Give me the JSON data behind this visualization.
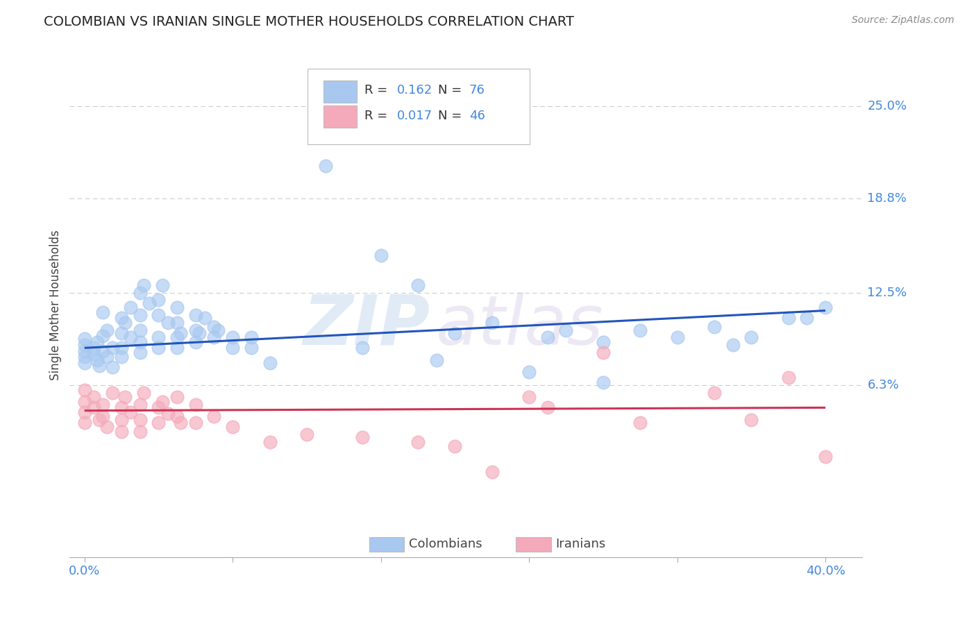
{
  "title": "COLOMBIAN VS IRANIAN SINGLE MOTHER HOUSEHOLDS CORRELATION CHART",
  "source_text": "Source: ZipAtlas.com",
  "ylabel": "Single Mother Households",
  "blue_color": "#A8C8F0",
  "blue_edge_color": "#A8C8F0",
  "blue_line_color": "#2255BB",
  "pink_color": "#F4AABB",
  "pink_edge_color": "#F4AABB",
  "pink_line_color": "#CC3355",
  "colombians_label": "Colombians",
  "iranians_label": "Iranians",
  "watermark_zip": "ZIP",
  "watermark_atlas": "atlas",
  "background_color": "#ffffff",
  "grid_color": "#CCCCCC",
  "title_color": "#222222",
  "axis_label_color": "#444444",
  "tick_label_color": "#4488DD",
  "legend_text_dark": "#333333",
  "legend_text_blue": "#4488DD",
  "ytick_labels": [
    "6.3%",
    "12.5%",
    "18.8%",
    "25.0%"
  ],
  "ytick_positions": [
    0.063,
    0.125,
    0.188,
    0.25
  ],
  "blue_trend_y0": 0.088,
  "blue_trend_y1": 0.113,
  "pink_trend_y0": 0.046,
  "pink_trend_y1": 0.048,
  "xlim_min": -0.0008,
  "xlim_max": 0.042,
  "ylim_min": -0.052,
  "ylim_max": 0.285
}
